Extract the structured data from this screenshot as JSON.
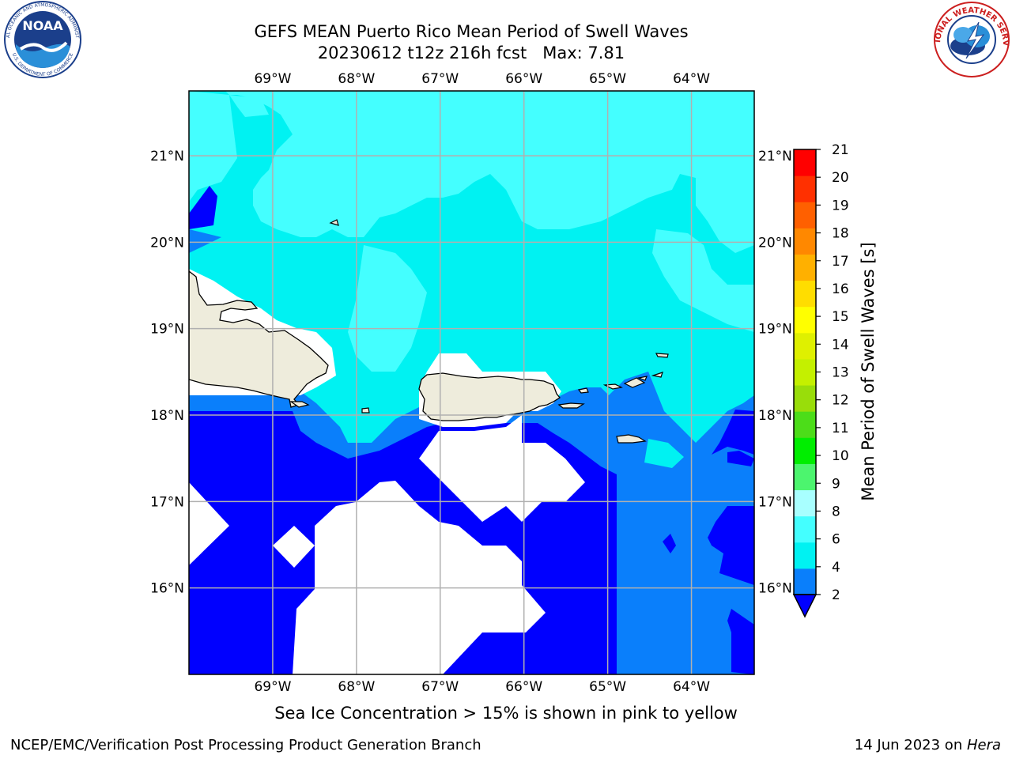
{
  "title_line1": "GEFS MEAN Puerto Rico Mean Period of Swell Waves",
  "title_line2": "20230612 t12z 216h fcst   Max: 7.81",
  "subtitle": "Sea Ice Concentration > 15% is shown in pink to yellow",
  "footer_left": "NCEP/EMC/Verification Post Processing Product Generation Branch",
  "footer_date": "14 Jun 2023 on ",
  "footer_system": "Hera",
  "logos": {
    "noaa_text": "NOAA",
    "noaa_ring_top": "NATIONAL OCEANIC AND ATMOSPHERIC ADMINISTRATION",
    "noaa_ring_bottom": "U.S. DEPARTMENT OF COMMERCE",
    "nws_ring": "NATIONAL WEATHER SERVICE"
  },
  "map": {
    "lon_labels": [
      "69°W",
      "68°W",
      "67°W",
      "66°W",
      "65°W",
      "64°W"
    ],
    "lat_labels": [
      "21°N",
      "20°N",
      "19°N",
      "18°N",
      "17°N",
      "16°N"
    ],
    "lon_values": [
      -69,
      -68,
      -67,
      -66,
      -65,
      -64
    ],
    "lat_values": [
      21,
      20,
      19,
      18,
      17,
      16
    ],
    "lon_range": [
      -70.0,
      -63.25
    ],
    "lat_range": [
      15.0,
      21.75
    ],
    "colors": {
      "land": "#eeecdc",
      "no_data": "#ffffff",
      "grid": "#b0b0b0",
      "period_2_4": "#0a7ffb",
      "period_4_6": "#00f2f2",
      "period_6_8": "#44ffff",
      "below_2": "#0000ff"
    }
  },
  "colorbar": {
    "label": "Mean Period of Swell Waves [s]",
    "ticks": [
      "2",
      "4",
      "6",
      "8",
      "9",
      "10",
      "11",
      "12",
      "13",
      "14",
      "15",
      "16",
      "17",
      "18",
      "19",
      "20",
      "21"
    ],
    "colors": [
      "#0a7ffb",
      "#00f2f2",
      "#44ffff",
      "#a8ffff",
      "#4cf56e",
      "#00ee00",
      "#4cdd19",
      "#99dd0a",
      "#c4f000",
      "#dff000",
      "#ffff00",
      "#ffdd00",
      "#ffb000",
      "#ff8800",
      "#ff6000",
      "#ff3000",
      "#ff0000"
    ],
    "under_color": "#0000ff"
  },
  "chart_data": {
    "type": "heatmap",
    "title": "GEFS MEAN Puerto Rico Mean Period of Swell Waves",
    "variable": "Mean Period of Swell Waves [s]",
    "run": "20230612 t12z",
    "forecast_hour": "216h",
    "max": 7.81,
    "levels": [
      2,
      4,
      6,
      8,
      9,
      10,
      11,
      12,
      13,
      14,
      15,
      16,
      17,
      18,
      19,
      20,
      21
    ],
    "x_ticks": [
      "69°W",
      "68°W",
      "67°W",
      "66°W",
      "65°W",
      "64°W"
    ],
    "y_ticks": [
      "21°N",
      "20°N",
      "19°N",
      "18°N",
      "17°N",
      "16°N"
    ]
  }
}
